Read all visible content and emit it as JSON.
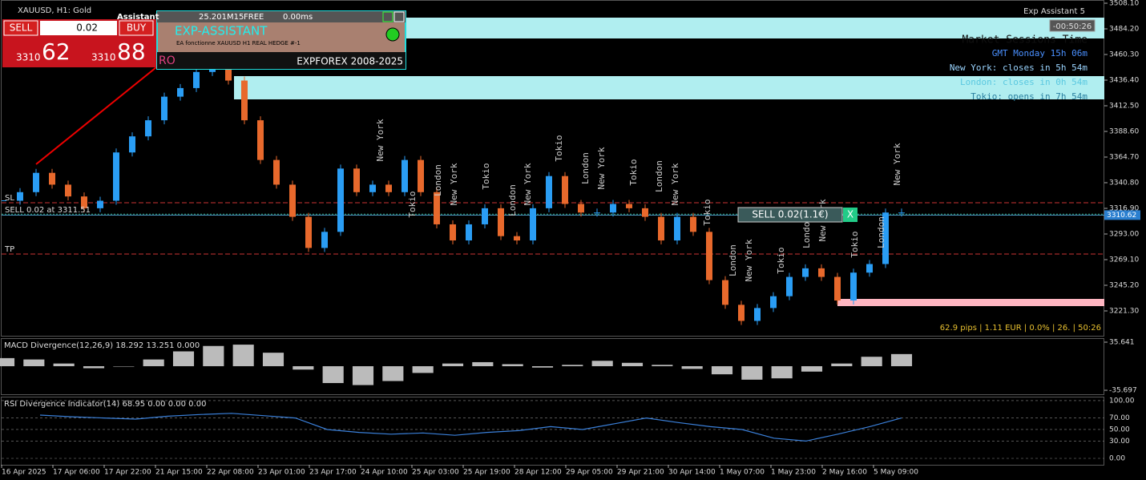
{
  "window": {
    "symbol": "XAUUSD, H1:  Gold",
    "ea_name": "Exp Assistant 5",
    "timer": "-00:50:26"
  },
  "trade_panel": {
    "sell": "SELL",
    "lot": "0.02",
    "buy": "BUY",
    "bid_big": "3310",
    "bid_small": "62",
    "ask_big": "3310",
    "ask_small": "88"
  },
  "assistant": {
    "title": "Assistant",
    "info": "25.201M15",
    "status": "FREE",
    "latency": "0.00ms",
    "name": "EXP-ASSISTANT",
    "comment": "EA fonctionne XAUUSD H1 REAL HEDGE  #-1",
    "mode": "RO",
    "copyright": "EXPFOREX 2008-2025"
  },
  "sessions": {
    "title": "Market Sessions Time",
    "gmt": "GMT Monday 15h 06m",
    "new_york": "New York: closes in 5h 54m",
    "london": "London: closes in 0h 54m",
    "tokio": "Tokio: opens in 7h 54m",
    "labels": [
      "New York",
      "Tokio",
      "London",
      "New York",
      "Tokio",
      "London",
      "New York",
      "Tokio",
      "London",
      "New York",
      "Tokio",
      "London",
      "New York",
      "Tokio",
      "London",
      "New York",
      "Tokio",
      "London",
      "New York",
      "Tokio",
      "London",
      "New York"
    ]
  },
  "orders": {
    "sl": "SL",
    "sell_line": "SELL 0.02 at 3311.51",
    "tp": "TP",
    "position": "SELL 0.02(1.1€)",
    "close": "X"
  },
  "stats": "62.9 pips | 1.11 EUR | 0.0% | 26. | 50:26",
  "price": {
    "ylim": [
      3197.4,
      3511.1
    ],
    "yticks": [
      {
        "value": 3508.1,
        "label": "3508.10"
      },
      {
        "value": 3484.2,
        "label": "3484.20"
      },
      {
        "value": 3460.3,
        "label": "3460.30"
      },
      {
        "value": 3436.4,
        "label": "3436.40"
      },
      {
        "value": 3412.5,
        "label": "3412.50"
      },
      {
        "value": 3388.6,
        "label": "3388.60"
      },
      {
        "value": 3364.7,
        "label": "3364.70"
      },
      {
        "value": 3340.8,
        "label": "3340.80"
      },
      {
        "value": 3316.9,
        "label": "3316.90"
      },
      {
        "value": 3293.0,
        "label": "3293.00"
      },
      {
        "value": 3269.1,
        "label": "3269.10"
      },
      {
        "value": 3245.2,
        "label": "3245.20"
      },
      {
        "value": 3221.3,
        "label": "3221.30"
      }
    ],
    "current": 3310.62,
    "levels": {
      "sl": 3322.1,
      "entry": 3311.51,
      "tp": 3274.3
    },
    "up_color": "#2a9df4",
    "down_color": "#e8692c",
    "closes": [
      3324,
      3332,
      3350,
      3339,
      3328,
      3317,
      3324,
      3369,
      3384,
      3399,
      3421,
      3429,
      3444,
      3451,
      3436,
      3399,
      3362,
      3339,
      3309,
      3280,
      3295,
      3354,
      3332,
      3339,
      3332,
      3362,
      3332,
      3302,
      3287,
      3302,
      3317,
      3291,
      3287,
      3317,
      3347,
      3321,
      3313,
      3313,
      3321,
      3317,
      3309,
      3287,
      3309,
      3295,
      3250,
      3227,
      3212,
      3224,
      3235,
      3253,
      3261,
      3253,
      3231,
      3257,
      3265,
      3313,
      3313
    ]
  },
  "macd": {
    "title": "MACD Divergence(12,26,9) 18.292 13.251 0.000",
    "ylim": [
      -41.6,
      41.6
    ],
    "yticks": [
      35.641,
      -35.697
    ],
    "histogram": [
      12,
      10,
      4,
      -3,
      0,
      10,
      22,
      30,
      32,
      20,
      -5,
      -25,
      -28,
      -22,
      -10,
      4,
      6,
      3,
      -2,
      2,
      8,
      5,
      2,
      -4,
      -12,
      -20,
      -18,
      -8,
      4,
      14,
      18
    ]
  },
  "rsi": {
    "title": "RSI Divergence Indicator(14) 68.95 0.00 0.00 0.00",
    "ylim": [
      -11.1,
      106.9
    ],
    "yticks": [
      {
        "value": 100,
        "label": "100.00"
      },
      {
        "value": 70,
        "label": "70.00"
      },
      {
        "value": 50,
        "label": "50.00"
      },
      {
        "value": 30,
        "label": "30.00"
      },
      {
        "value": 0,
        "label": "0.00"
      }
    ],
    "values": [
      75,
      72,
      70,
      68,
      73,
      76,
      78,
      74,
      70,
      50,
      45,
      42,
      44,
      40,
      45,
      48,
      55,
      50,
      60,
      70,
      62,
      55,
      50,
      35,
      30,
      42,
      55,
      70
    ]
  },
  "time_axis": {
    "labels": [
      "16 Apr 2025",
      "17 Apr 06:00",
      "17 Apr 22:00",
      "21 Apr 15:00",
      "22 Apr 08:00",
      "23 Apr 01:00",
      "23 Apr 17:00",
      "24 Apr 10:00",
      "25 Apr 03:00",
      "25 Apr 19:00",
      "28 Apr 12:00",
      "29 Apr 05:00",
      "29 Apr 21:00",
      "30 Apr 14:00",
      "1 May 07:00",
      "1 May 23:00",
      "2 May 16:00",
      "5 May 09:00"
    ]
  }
}
